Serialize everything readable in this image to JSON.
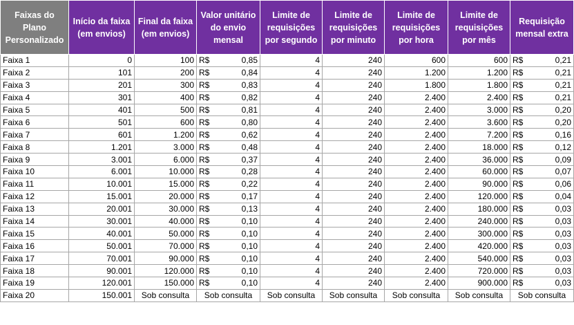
{
  "colors": {
    "header_gray": "#7f7f7f",
    "header_purple": "#7030a0",
    "border": "#a6a6a6"
  },
  "headers": [
    "Faixas do Plano Personalizado",
    "Início da faixa (em envios)",
    "Final da faixa (em envios)",
    "Valor unitário do envio mensal",
    "Limite de requisições por segundo",
    "Limite de requisições por minuto",
    "Limite de requisições por hora",
    "Limite de requisições por mês",
    "Requisição mensal extra"
  ],
  "currency": "R$",
  "rows": [
    {
      "faixa": "Faixa 1",
      "inicio": "0",
      "final": "100",
      "valor": "0,85",
      "seg": "4",
      "min": "240",
      "hora": "600",
      "mes": "600",
      "extra": "0,21"
    },
    {
      "faixa": "Faixa 2",
      "inicio": "101",
      "final": "200",
      "valor": "0,84",
      "seg": "4",
      "min": "240",
      "hora": "1.200",
      "mes": "1.200",
      "extra": "0,21"
    },
    {
      "faixa": "Faixa 3",
      "inicio": "201",
      "final": "300",
      "valor": "0,83",
      "seg": "4",
      "min": "240",
      "hora": "1.800",
      "mes": "1.800",
      "extra": "0,21"
    },
    {
      "faixa": "Faixa 4",
      "inicio": "301",
      "final": "400",
      "valor": "0,82",
      "seg": "4",
      "min": "240",
      "hora": "2.400",
      "mes": "2.400",
      "extra": "0,21"
    },
    {
      "faixa": "Faixa 5",
      "inicio": "401",
      "final": "500",
      "valor": "0,81",
      "seg": "4",
      "min": "240",
      "hora": "2.400",
      "mes": "3.000",
      "extra": "0,20"
    },
    {
      "faixa": "Faixa 6",
      "inicio": "501",
      "final": "600",
      "valor": "0,80",
      "seg": "4",
      "min": "240",
      "hora": "2.400",
      "mes": "3.600",
      "extra": "0,20"
    },
    {
      "faixa": "Faixa 7",
      "inicio": "601",
      "final": "1.200",
      "valor": "0,62",
      "seg": "4",
      "min": "240",
      "hora": "2.400",
      "mes": "7.200",
      "extra": "0,16"
    },
    {
      "faixa": "Faixa 8",
      "inicio": "1.201",
      "final": "3.000",
      "valor": "0,48",
      "seg": "4",
      "min": "240",
      "hora": "2.400",
      "mes": "18.000",
      "extra": "0,12"
    },
    {
      "faixa": "Faixa 9",
      "inicio": "3.001",
      "final": "6.000",
      "valor": "0,37",
      "seg": "4",
      "min": "240",
      "hora": "2.400",
      "mes": "36.000",
      "extra": "0,09"
    },
    {
      "faixa": "Faixa 10",
      "inicio": "6.001",
      "final": "10.000",
      "valor": "0,28",
      "seg": "4",
      "min": "240",
      "hora": "2.400",
      "mes": "60.000",
      "extra": "0,07"
    },
    {
      "faixa": "Faixa 11",
      "inicio": "10.001",
      "final": "15.000",
      "valor": "0,22",
      "seg": "4",
      "min": "240",
      "hora": "2.400",
      "mes": "90.000",
      "extra": "0,06"
    },
    {
      "faixa": "Faixa 12",
      "inicio": "15.001",
      "final": "20.000",
      "valor": "0,17",
      "seg": "4",
      "min": "240",
      "hora": "2.400",
      "mes": "120.000",
      "extra": "0,04"
    },
    {
      "faixa": "Faixa 13",
      "inicio": "20.001",
      "final": "30.000",
      "valor": "0,13",
      "seg": "4",
      "min": "240",
      "hora": "2.400",
      "mes": "180.000",
      "extra": "0,03"
    },
    {
      "faixa": "Faixa 14",
      "inicio": "30.001",
      "final": "40.000",
      "valor": "0,10",
      "seg": "4",
      "min": "240",
      "hora": "2.400",
      "mes": "240.000",
      "extra": "0,03"
    },
    {
      "faixa": "Faixa 15",
      "inicio": "40.001",
      "final": "50.000",
      "valor": "0,10",
      "seg": "4",
      "min": "240",
      "hora": "2.400",
      "mes": "300.000",
      "extra": "0,03"
    },
    {
      "faixa": "Faixa 16",
      "inicio": "50.001",
      "final": "70.000",
      "valor": "0,10",
      "seg": "4",
      "min": "240",
      "hora": "2.400",
      "mes": "420.000",
      "extra": "0,03"
    },
    {
      "faixa": "Faixa 17",
      "inicio": "70.001",
      "final": "90.000",
      "valor": "0,10",
      "seg": "4",
      "min": "240",
      "hora": "2.400",
      "mes": "540.000",
      "extra": "0,03"
    },
    {
      "faixa": "Faixa 18",
      "inicio": "90.001",
      "final": "120.000",
      "valor": "0,10",
      "seg": "4",
      "min": "240",
      "hora": "2.400",
      "mes": "720.000",
      "extra": "0,03"
    },
    {
      "faixa": "Faixa 19",
      "inicio": "120.001",
      "final": "150.000",
      "valor": "0,10",
      "seg": "4",
      "min": "240",
      "hora": "2.400",
      "mes": "900.000",
      "extra": "0,03"
    }
  ],
  "last_row": {
    "faixa": "Faixa 20",
    "inicio": "150.001",
    "consult": "Sob consulta"
  }
}
